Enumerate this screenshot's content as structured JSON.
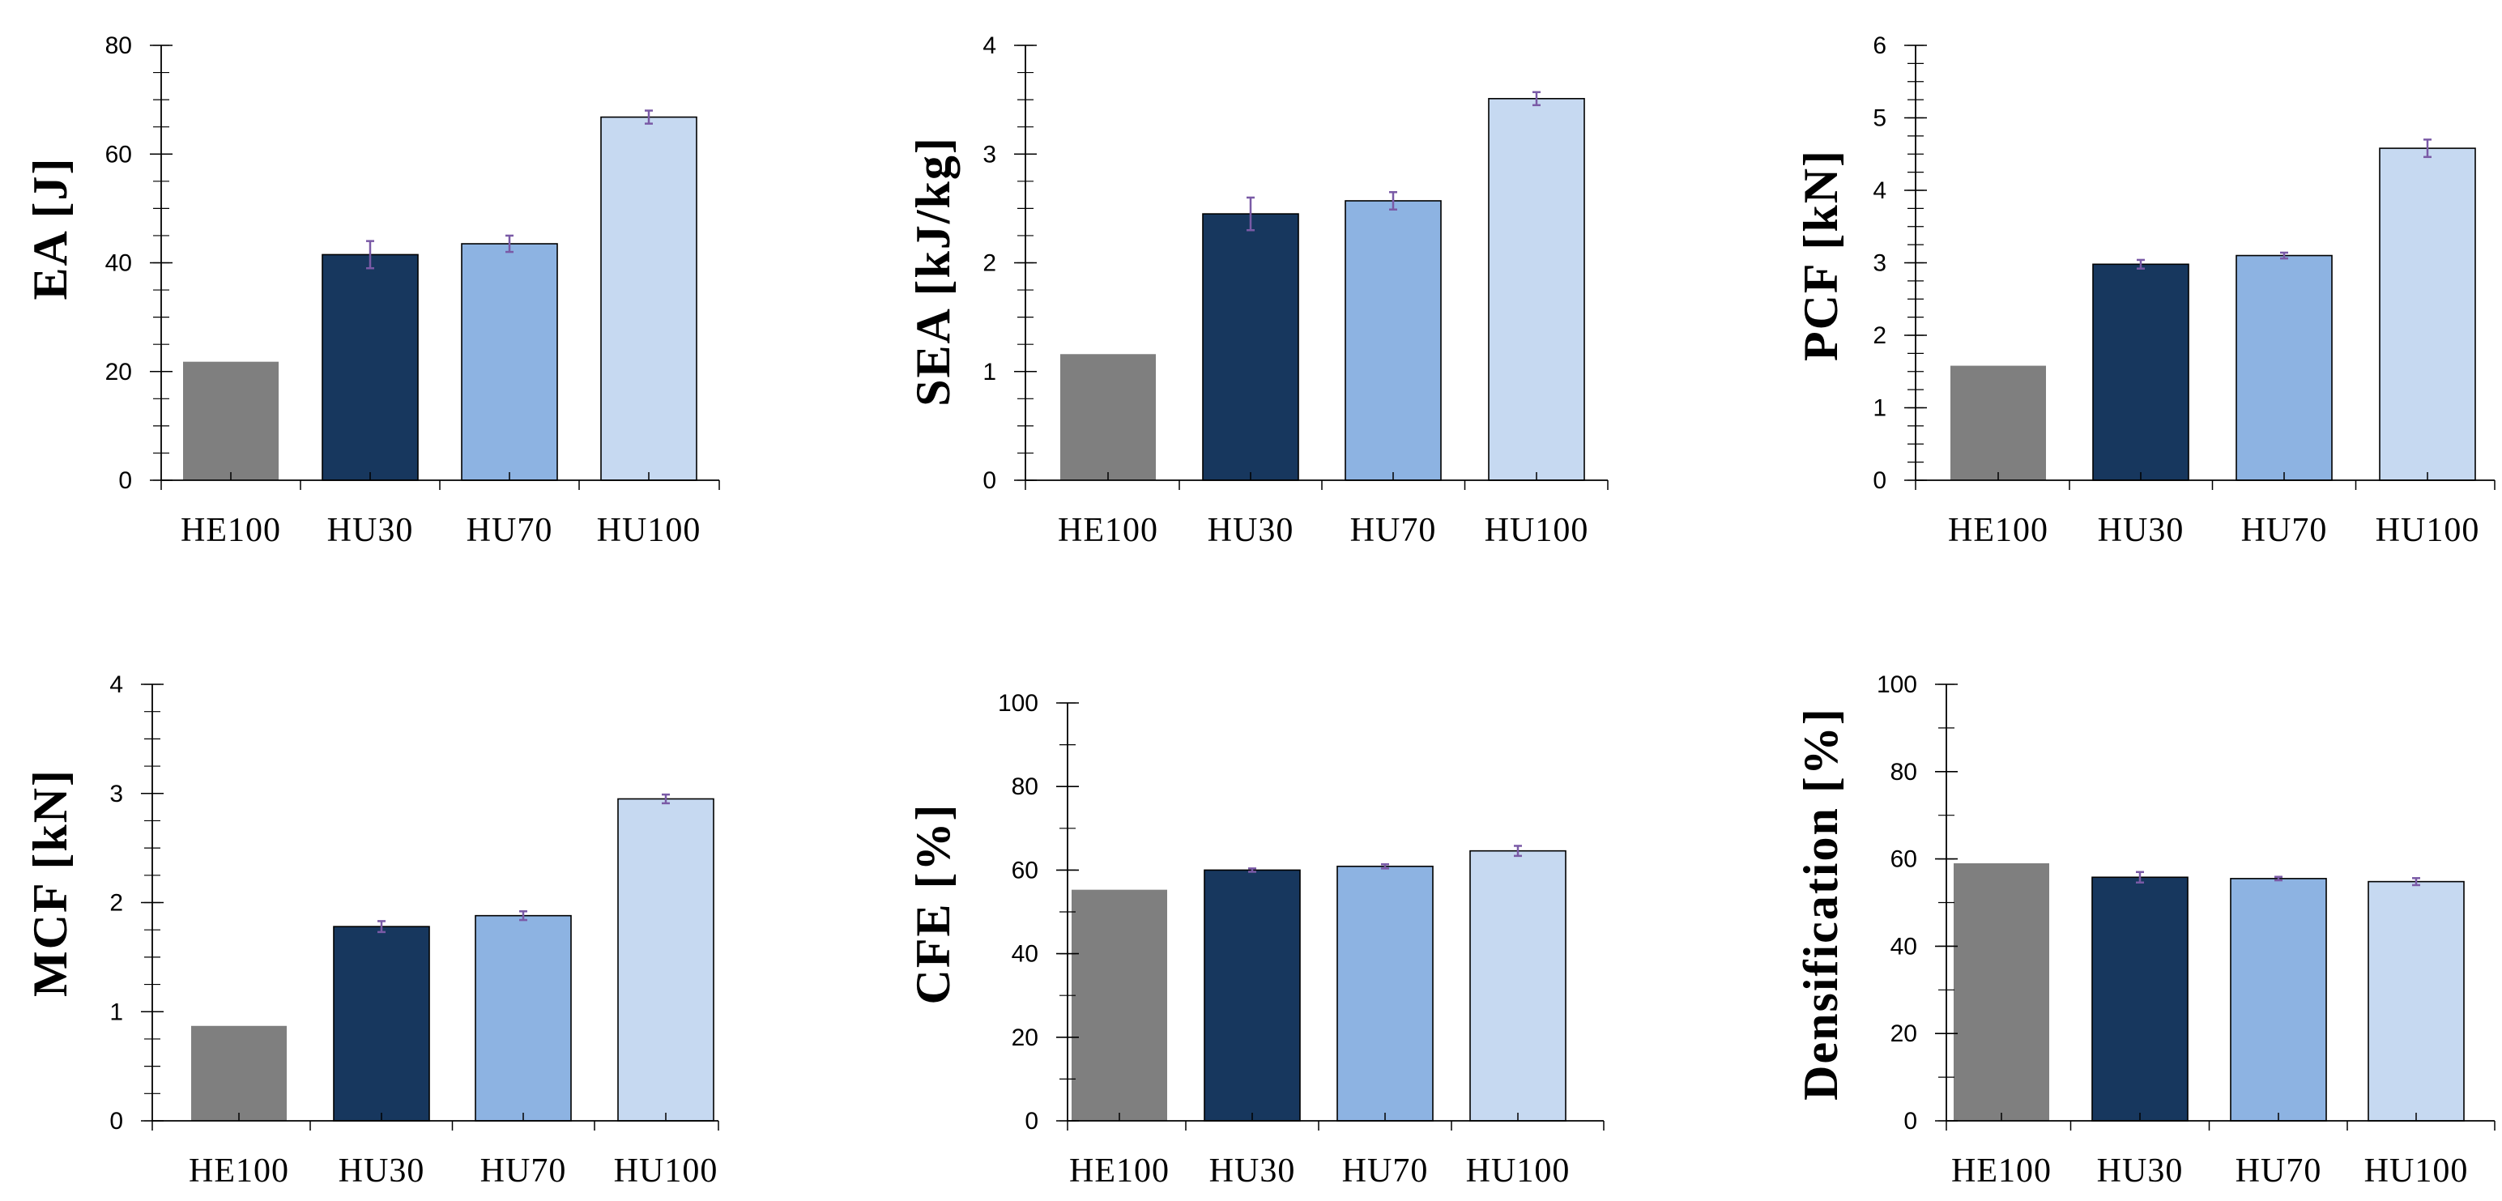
{
  "colors": {
    "HE100": "#7f7f7f",
    "HU30": "#17375e",
    "HU70": "#8db3e2",
    "HU100": "#c6d9f1",
    "error_bar": "#7a5aa6",
    "axis": "#000000"
  },
  "chart_data": [
    {
      "type": "bar",
      "title": "",
      "xlabel": "",
      "ylabel": "EA [J]",
      "categories": [
        "HE100",
        "HU30",
        "HU70",
        "HU100"
      ],
      "values": [
        21.8,
        41.5,
        43.5,
        66.8
      ],
      "errors": [
        0,
        2.5,
        1.5,
        1.2
      ],
      "ylim": [
        0,
        80
      ],
      "yticks": [
        0,
        20,
        40,
        60,
        80
      ],
      "minor_step": 5
    },
    {
      "type": "bar",
      "title": "",
      "xlabel": "",
      "ylabel": "SEA [kJ/kg]",
      "categories": [
        "HE100",
        "HU30",
        "HU70",
        "HU100"
      ],
      "values": [
        1.16,
        2.45,
        2.57,
        3.51
      ],
      "errors": [
        0,
        0.15,
        0.08,
        0.06
      ],
      "ylim": [
        0,
        4
      ],
      "yticks": [
        0,
        1,
        2,
        3,
        4
      ],
      "minor_step": 0.25
    },
    {
      "type": "bar",
      "title": "",
      "xlabel": "",
      "ylabel": "PCF [kN]",
      "categories": [
        "HE100",
        "HU30",
        "HU70",
        "HU100"
      ],
      "values": [
        1.58,
        2.98,
        3.1,
        4.58
      ],
      "errors": [
        0,
        0.06,
        0.04,
        0.12
      ],
      "ylim": [
        0,
        6
      ],
      "yticks": [
        0,
        1,
        2,
        3,
        4,
        5,
        6
      ],
      "minor_step": 0.25
    },
    {
      "type": "bar",
      "title": "",
      "xlabel": "",
      "ylabel": "MCF [kN]",
      "categories": [
        "HE100",
        "HU30",
        "HU70",
        "HU100"
      ],
      "values": [
        0.87,
        1.78,
        1.88,
        2.95
      ],
      "errors": [
        0,
        0.05,
        0.04,
        0.04
      ],
      "ylim": [
        0,
        4
      ],
      "yticks": [
        0,
        1,
        2,
        3,
        4
      ],
      "minor_step": 0.25
    },
    {
      "type": "bar",
      "title": "",
      "xlabel": "",
      "ylabel": "CFE [%]",
      "categories": [
        "HE100",
        "HU30",
        "HU70",
        "HU100"
      ],
      "values": [
        55.3,
        60.0,
        60.9,
        64.6
      ],
      "errors": [
        0,
        0.4,
        0.5,
        1.2
      ],
      "ylim": [
        0,
        100
      ],
      "yticks": [
        0,
        20,
        40,
        60,
        80,
        100
      ],
      "minor_step": 10
    },
    {
      "type": "bar",
      "title": "",
      "xlabel": "",
      "ylabel": "Densification [%]",
      "categories": [
        "HE100",
        "HU30",
        "HU70",
        "HU100"
      ],
      "values": [
        59.0,
        55.8,
        55.5,
        54.8
      ],
      "errors": [
        0,
        1.2,
        0.4,
        0.8
      ],
      "ylim": [
        0,
        100
      ],
      "yticks": [
        0,
        20,
        40,
        60,
        80,
        100
      ],
      "minor_step": 10
    }
  ]
}
